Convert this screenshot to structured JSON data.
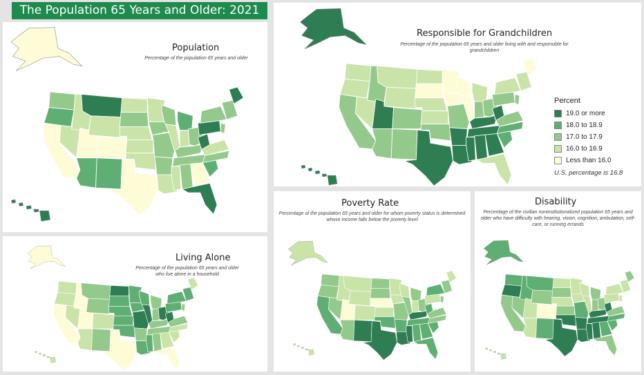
{
  "title": "The Population 65 Years and Older: 2021",
  "palette": {
    "c5": "#2e7d53",
    "c4": "#5fae74",
    "c3": "#93c98b",
    "c2": "#c9e3a8",
    "c1": "#fdfcd7",
    "border": "#ffffff"
  },
  "legend": {
    "title": "Percent",
    "items": [
      {
        "label": "19.0 or more",
        "class": "c5"
      },
      {
        "label": "18.0 to 18.9",
        "class": "c4"
      },
      {
        "label": "17.0 to 17.9",
        "class": "c3"
      },
      {
        "label": "16.0 to 16.9",
        "class": "c2"
      },
      {
        "label": "Less than 16.0",
        "class": "c1"
      }
    ],
    "note": "U.S. percentage is 16.8"
  },
  "panels": [
    {
      "id": "population",
      "title": "Population",
      "subtitle": "Percentage of the population 65 years and older",
      "states": {
        "WA": "c3",
        "OR": "c4",
        "CA": "c1",
        "NV": "c2",
        "ID": "c2",
        "MT": "c5",
        "WY": "c2",
        "UT": "c1",
        "AZ": "c4",
        "CO": "c1",
        "NM": "c4",
        "TX": "c1",
        "ND": "c2",
        "SD": "c3",
        "NE": "c2",
        "KS": "c2",
        "OK": "c2",
        "MN": "c2",
        "IA": "c3",
        "MO": "c3",
        "AR": "c3",
        "LA": "c2",
        "WI": "c3",
        "IL": "c2",
        "MI": "c4",
        "IN": "c2",
        "OH": "c3",
        "KY": "c3",
        "TN": "c3",
        "MS": "c2",
        "AL": "c3",
        "GA": "c1",
        "FL": "c5",
        "SC": "c4",
        "NC": "c3",
        "VA": "c2",
        "WV": "c5",
        "PA": "c5",
        "NY": "c3",
        "NE_REG": "c3",
        "ME": "c5",
        "NJ": "c3",
        "AK": "c1",
        "HI": "c5"
      }
    },
    {
      "id": "grandchildren",
      "title": "Responsible for Grandchildren",
      "subtitle": "Percentage of the population 65 years and older living with and responsible for grandchildren",
      "states": {
        "WA": "c2",
        "OR": "c2",
        "CA": "c3",
        "NV": "c2",
        "ID": "c3",
        "MT": "c2",
        "WY": "c2",
        "UT": "c5",
        "AZ": "c3",
        "CO": "c3",
        "NM": "c3",
        "TX": "c5",
        "ND": "c2",
        "SD": "c1",
        "NE": "c2",
        "KS": "c2",
        "OK": "c3",
        "MN": "c1",
        "IA": "c1",
        "MO": "c3",
        "AR": "c5",
        "LA": "c5",
        "WI": "c1",
        "IL": "c1",
        "MI": "c2",
        "IN": "c3",
        "OH": "c3",
        "KY": "c5",
        "TN": "c5",
        "MS": "c5",
        "AL": "c5",
        "GA": "c5",
        "FL": "c2",
        "SC": "c4",
        "NC": "c4",
        "VA": "c3",
        "WV": "c5",
        "PA": "c3",
        "NY": "c2",
        "NE_REG": "c2",
        "ME": "c1",
        "NJ": "c3",
        "AK": "c5",
        "HI": "c5"
      }
    },
    {
      "id": "living-alone",
      "title": "Living Alone",
      "subtitle": "Percentage of the population 65 years and older who live alone in a household",
      "states": {
        "WA": "c2",
        "OR": "c2",
        "CA": "c1",
        "NV": "c2",
        "ID": "c1",
        "MT": "c3",
        "WY": "c3",
        "UT": "c1",
        "AZ": "c2",
        "CO": "c2",
        "NM": "c3",
        "TX": "c1",
        "ND": "c5",
        "SD": "c4",
        "NE": "c4",
        "KS": "c4",
        "OK": "c4",
        "MN": "c4",
        "IA": "c4",
        "MO": "c5",
        "AR": "c3",
        "LA": "c4",
        "WI": "c4",
        "IL": "c5",
        "MI": "c3",
        "IN": "c3",
        "OH": "c5",
        "KY": "c3",
        "TN": "c3",
        "MS": "c4",
        "AL": "c3",
        "GA": "c2",
        "FL": "c1",
        "SC": "c2",
        "NC": "c2",
        "VA": "c3",
        "WV": "c5",
        "PA": "c4",
        "NY": "c4",
        "NE_REG": "c4",
        "ME": "c2",
        "NJ": "c3",
        "AK": "c1",
        "HI": "c2"
      }
    },
    {
      "id": "poverty",
      "title": "Poverty Rate",
      "subtitle": "Percentage of the population 65 years and older for whom poverty status is determined whose income falls below the poverty level",
      "states": {
        "WA": "c3",
        "OR": "c3",
        "CA": "c4",
        "NV": "c3",
        "ID": "c2",
        "MT": "c2",
        "WY": "c2",
        "UT": "c1",
        "AZ": "c3",
        "CO": "c2",
        "NM": "c5",
        "TX": "c5",
        "ND": "c3",
        "SD": "c3",
        "NE": "c1",
        "KS": "c2",
        "OK": "c4",
        "MN": "c2",
        "IA": "c2",
        "MO": "c3",
        "AR": "c4",
        "LA": "c5",
        "WI": "c2",
        "IL": "c3",
        "MI": "c3",
        "IN": "c2",
        "OH": "c3",
        "KY": "c5",
        "TN": "c4",
        "MS": "c5",
        "AL": "c4",
        "GA": "c4",
        "FL": "c4",
        "SC": "c4",
        "NC": "c3",
        "VA": "c3",
        "WV": "c4",
        "PA": "c2",
        "NY": "c4",
        "NE_REG": "c3",
        "ME": "c2",
        "NJ": "c3",
        "AK": "c2",
        "HI": "c2"
      }
    },
    {
      "id": "disability",
      "title": "Disability",
      "subtitle": "Percentage of the civilian noninstitutionalized population 65 years and older who have difficulty with hearing, vision, cognition, ambulation, self-care, or running errands",
      "states": {
        "WA": "c4",
        "OR": "c5",
        "CA": "c3",
        "NV": "c3",
        "ID": "c4",
        "MT": "c4",
        "WY": "c3",
        "UT": "c2",
        "AZ": "c2",
        "CO": "c1",
        "NM": "c4",
        "TX": "c5",
        "ND": "c2",
        "SD": "c3",
        "NE": "c2",
        "KS": "c3",
        "OK": "c5",
        "MN": "c2",
        "IA": "c2",
        "MO": "c4",
        "AR": "c5",
        "LA": "c5",
        "WI": "c2",
        "IL": "c2",
        "MI": "c3",
        "IN": "c3",
        "OH": "c3",
        "KY": "c5",
        "TN": "c5",
        "MS": "c5",
        "AL": "c5",
        "GA": "c4",
        "FL": "c3",
        "SC": "c4",
        "NC": "c4",
        "VA": "c3",
        "WV": "c5",
        "PA": "c2",
        "NY": "c2",
        "NE_REG": "c2",
        "ME": "c3",
        "NJ": "c2",
        "AK": "c4",
        "HI": "c2"
      }
    }
  ]
}
